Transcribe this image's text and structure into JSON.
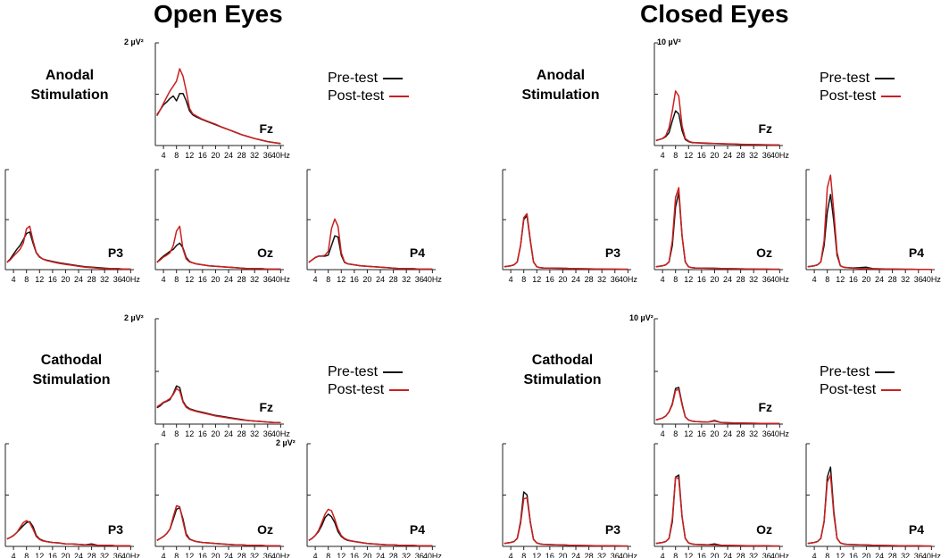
{
  "titles": {
    "left": "Open Eyes",
    "right": "Closed Eyes"
  },
  "conditions": {
    "anodal": [
      "Anodal",
      "Stimulation"
    ],
    "cathodal": [
      "Cathodal",
      "Stimulation"
    ]
  },
  "legend": {
    "pre": "Pre-test",
    "post": "Post-test"
  },
  "colors": {
    "pre": "#111111",
    "post": "#cc1f1f",
    "axis": "#222222"
  },
  "chart_data": {
    "type": "line",
    "xlabel": "Hz",
    "x_ticks": [
      4,
      8,
      12,
      16,
      20,
      24,
      28,
      32,
      36,
      40
    ],
    "x_tick_labels": [
      "4",
      "8",
      "12",
      "16",
      "20",
      "24",
      "28",
      "32",
      "36",
      "40Hz"
    ],
    "x": [
      2,
      3,
      4,
      5,
      6,
      7,
      8,
      9,
      10,
      11,
      12,
      13,
      14,
      16,
      18,
      20,
      22,
      24,
      26,
      28,
      30,
      32,
      34,
      36,
      38,
      40
    ],
    "series_names": [
      "Pre-test",
      "Post-test"
    ],
    "panels": [
      {
        "condition": "Anodal Stimulation",
        "state": "Open Eyes",
        "channel": "Fz",
        "ylabel": "2  µV²",
        "ylim": [
          0,
          2
        ],
        "pre": [
          0.62,
          0.72,
          0.82,
          0.88,
          0.95,
          1.0,
          0.9,
          1.05,
          1.05,
          0.9,
          0.7,
          0.62,
          0.58,
          0.52,
          0.47,
          0.42,
          0.37,
          0.32,
          0.27,
          0.22,
          0.18,
          0.14,
          0.11,
          0.08,
          0.06,
          0.04
        ],
        "post": [
          0.6,
          0.72,
          0.85,
          0.98,
          1.1,
          1.2,
          1.3,
          1.55,
          1.4,
          1.1,
          0.75,
          0.64,
          0.6,
          0.53,
          0.48,
          0.43,
          0.37,
          0.32,
          0.27,
          0.22,
          0.18,
          0.14,
          0.11,
          0.08,
          0.06,
          0.04
        ]
      },
      {
        "condition": "Anodal Stimulation",
        "state": "Open Eyes",
        "channel": "P3",
        "ylabel": "",
        "ylim": [
          0,
          2
        ],
        "pre": [
          0.15,
          0.22,
          0.32,
          0.42,
          0.5,
          0.62,
          0.75,
          0.78,
          0.55,
          0.35,
          0.26,
          0.22,
          0.2,
          0.17,
          0.14,
          0.12,
          0.1,
          0.08,
          0.06,
          0.05,
          0.04,
          0.03,
          0.02,
          0.02,
          0.01,
          0.01
        ],
        "post": [
          0.15,
          0.2,
          0.28,
          0.35,
          0.42,
          0.55,
          0.85,
          0.9,
          0.6,
          0.36,
          0.27,
          0.22,
          0.19,
          0.16,
          0.13,
          0.11,
          0.09,
          0.07,
          0.05,
          0.04,
          0.03,
          0.02,
          0.02,
          0.02,
          0.01,
          0.01
        ]
      },
      {
        "condition": "Anodal Stimulation",
        "state": "Open Eyes",
        "channel": "Oz",
        "ylabel": "",
        "ylim": [
          0,
          2
        ],
        "pre": [
          0.15,
          0.22,
          0.28,
          0.33,
          0.38,
          0.42,
          0.5,
          0.55,
          0.45,
          0.25,
          0.17,
          0.14,
          0.12,
          0.1,
          0.08,
          0.07,
          0.06,
          0.05,
          0.04,
          0.03,
          0.02,
          0.02,
          0.02,
          0.01,
          0.01,
          0.01
        ],
        "post": [
          0.15,
          0.2,
          0.26,
          0.3,
          0.35,
          0.5,
          0.8,
          0.9,
          0.42,
          0.22,
          0.16,
          0.14,
          0.12,
          0.1,
          0.08,
          0.07,
          0.06,
          0.05,
          0.04,
          0.03,
          0.02,
          0.02,
          0.02,
          0.01,
          0.01,
          0.01
        ]
      },
      {
        "condition": "Anodal Stimulation",
        "state": "Open Eyes",
        "channel": "P4",
        "ylabel": "",
        "ylim": [
          0,
          2
        ],
        "pre": [
          0.15,
          0.2,
          0.25,
          0.28,
          0.28,
          0.28,
          0.3,
          0.5,
          0.7,
          0.68,
          0.3,
          0.15,
          0.12,
          0.1,
          0.08,
          0.07,
          0.06,
          0.05,
          0.04,
          0.03,
          0.02,
          0.02,
          0.02,
          0.01,
          0.01,
          0.01
        ],
        "post": [
          0.15,
          0.2,
          0.25,
          0.28,
          0.28,
          0.3,
          0.38,
          0.85,
          1.05,
          0.9,
          0.35,
          0.16,
          0.12,
          0.1,
          0.08,
          0.07,
          0.06,
          0.05,
          0.04,
          0.03,
          0.02,
          0.02,
          0.02,
          0.01,
          0.01,
          0.01
        ]
      },
      {
        "condition": "Anodal Stimulation",
        "state": "Closed Eyes",
        "channel": "Fz",
        "ylabel": "10  µV²",
        "ylim": [
          0,
          10
        ],
        "pre": [
          0.5,
          0.6,
          0.7,
          0.9,
          1.3,
          2.5,
          3.5,
          3.2,
          1.5,
          0.6,
          0.4,
          0.3,
          0.28,
          0.25,
          0.22,
          0.2,
          0.18,
          0.16,
          0.14,
          0.12,
          0.1,
          0.09,
          0.08,
          0.07,
          0.06,
          0.05
        ],
        "post": [
          0.5,
          0.6,
          0.7,
          1.0,
          1.8,
          3.5,
          5.5,
          5.0,
          2.0,
          0.7,
          0.45,
          0.32,
          0.3,
          0.27,
          0.24,
          0.21,
          0.19,
          0.17,
          0.15,
          0.13,
          0.11,
          0.1,
          0.09,
          0.08,
          0.07,
          0.06
        ]
      },
      {
        "condition": "Anodal Stimulation",
        "state": "Closed Eyes",
        "channel": "P3",
        "ylabel": "",
        "ylim": [
          0,
          10
        ],
        "pre": [
          0.3,
          0.35,
          0.4,
          0.5,
          0.8,
          2.5,
          5.2,
          5.6,
          3.0,
          0.8,
          0.3,
          0.2,
          0.18,
          0.17,
          0.15,
          0.14,
          0.12,
          0.1,
          0.09,
          0.08,
          0.07,
          0.06,
          0.05,
          0.05,
          0.04,
          0.04
        ],
        "post": [
          0.3,
          0.35,
          0.4,
          0.5,
          0.8,
          2.5,
          5.4,
          5.8,
          3.1,
          0.8,
          0.3,
          0.2,
          0.18,
          0.17,
          0.15,
          0.14,
          0.12,
          0.1,
          0.09,
          0.08,
          0.07,
          0.06,
          0.05,
          0.05,
          0.04,
          0.04
        ]
      },
      {
        "condition": "Anodal Stimulation",
        "state": "Closed Eyes",
        "channel": "Oz",
        "ylabel": "",
        "ylim": [
          0,
          10
        ],
        "pre": [
          0.3,
          0.35,
          0.4,
          0.5,
          0.8,
          2.5,
          6.5,
          8.0,
          3.5,
          0.8,
          0.3,
          0.2,
          0.18,
          0.17,
          0.15,
          0.14,
          0.12,
          0.1,
          0.09,
          0.08,
          0.07,
          0.06,
          0.05,
          0.05,
          0.04,
          0.04
        ],
        "post": [
          0.3,
          0.35,
          0.4,
          0.5,
          0.8,
          3.0,
          7.5,
          8.5,
          3.5,
          0.8,
          0.3,
          0.2,
          0.18,
          0.17,
          0.15,
          0.14,
          0.12,
          0.1,
          0.09,
          0.08,
          0.07,
          0.06,
          0.05,
          0.05,
          0.04,
          0.04
        ]
      },
      {
        "condition": "Anodal Stimulation",
        "state": "Closed Eyes",
        "channel": "P4",
        "ylabel": "",
        "ylim": [
          0,
          10
        ],
        "pre": [
          0.3,
          0.35,
          0.4,
          0.5,
          0.8,
          2.5,
          6.0,
          7.8,
          5.0,
          1.5,
          0.4,
          0.25,
          0.2,
          0.18,
          0.2,
          0.25,
          0.1,
          0.08,
          0.07,
          0.06,
          0.05,
          0.04,
          0.04,
          0.03,
          0.03,
          0.03
        ],
        "post": [
          0.3,
          0.35,
          0.4,
          0.5,
          0.8,
          3.0,
          8.5,
          9.8,
          6.0,
          1.8,
          0.4,
          0.25,
          0.2,
          0.15,
          0.12,
          0.1,
          0.09,
          0.08,
          0.07,
          0.06,
          0.05,
          0.04,
          0.04,
          0.03,
          0.03,
          0.03
        ]
      },
      {
        "condition": "Cathodal Stimulation",
        "state": "Open Eyes",
        "channel": "Fz",
        "ylabel": "2  µV²",
        "ylim": [
          0,
          2
        ],
        "pre": [
          0.32,
          0.36,
          0.42,
          0.45,
          0.48,
          0.6,
          0.75,
          0.72,
          0.45,
          0.35,
          0.3,
          0.28,
          0.26,
          0.23,
          0.2,
          0.17,
          0.15,
          0.13,
          0.11,
          0.09,
          0.07,
          0.06,
          0.05,
          0.04,
          0.03,
          0.03
        ],
        "post": [
          0.34,
          0.38,
          0.43,
          0.46,
          0.5,
          0.58,
          0.7,
          0.65,
          0.43,
          0.33,
          0.29,
          0.27,
          0.25,
          0.22,
          0.19,
          0.16,
          0.14,
          0.12,
          0.1,
          0.08,
          0.07,
          0.06,
          0.05,
          0.04,
          0.03,
          0.03
        ]
      },
      {
        "condition": "Cathodal Stimulation",
        "state": "Open Eyes",
        "channel": "P3",
        "ylabel": "",
        "ylim": [
          0,
          2
        ],
        "pre": [
          0.15,
          0.18,
          0.22,
          0.28,
          0.35,
          0.42,
          0.48,
          0.5,
          0.4,
          0.22,
          0.15,
          0.12,
          0.1,
          0.08,
          0.07,
          0.05,
          0.05,
          0.04,
          0.03,
          0.05,
          0.02,
          0.02,
          0.02,
          0.01,
          0.01,
          0.01
        ],
        "post": [
          0.15,
          0.18,
          0.22,
          0.28,
          0.38,
          0.48,
          0.52,
          0.48,
          0.35,
          0.2,
          0.14,
          0.11,
          0.1,
          0.08,
          0.07,
          0.05,
          0.05,
          0.04,
          0.03,
          0.03,
          0.02,
          0.02,
          0.02,
          0.01,
          0.01,
          0.01
        ]
      },
      {
        "condition": "Cathodal Stimulation",
        "state": "Open Eyes",
        "channel": "Oz",
        "ylabel": "",
        "ylim": [
          0,
          2
        ],
        "pre": [
          0.12,
          0.16,
          0.2,
          0.26,
          0.35,
          0.55,
          0.75,
          0.78,
          0.55,
          0.25,
          0.15,
          0.12,
          0.1,
          0.08,
          0.07,
          0.06,
          0.05,
          0.04,
          0.03,
          0.03,
          0.02,
          0.02,
          0.02,
          0.01,
          0.01,
          0.01
        ],
        "post": [
          0.12,
          0.16,
          0.2,
          0.26,
          0.35,
          0.6,
          0.82,
          0.8,
          0.5,
          0.22,
          0.14,
          0.12,
          0.1,
          0.08,
          0.07,
          0.06,
          0.05,
          0.04,
          0.03,
          0.03,
          0.02,
          0.02,
          0.02,
          0.01,
          0.01,
          0.01
        ]
      },
      {
        "condition": "Cathodal Stimulation",
        "state": "Open Eyes",
        "channel": "P4",
        "ylabel": "2  µV²",
        "ylim": [
          0,
          2
        ],
        "pre": [
          0.12,
          0.16,
          0.22,
          0.3,
          0.42,
          0.58,
          0.65,
          0.6,
          0.48,
          0.3,
          0.2,
          0.15,
          0.12,
          0.1,
          0.08,
          0.06,
          0.05,
          0.04,
          0.03,
          0.03,
          0.02,
          0.02,
          0.02,
          0.01,
          0.01,
          0.01
        ],
        "post": [
          0.12,
          0.16,
          0.22,
          0.32,
          0.48,
          0.65,
          0.75,
          0.72,
          0.55,
          0.35,
          0.22,
          0.16,
          0.13,
          0.1,
          0.08,
          0.06,
          0.05,
          0.04,
          0.03,
          0.03,
          0.02,
          0.02,
          0.02,
          0.01,
          0.01,
          0.01
        ]
      },
      {
        "condition": "Cathodal Stimulation",
        "state": "Closed Eyes",
        "channel": "Fz",
        "ylabel": "10 µV²",
        "ylim": [
          0,
          10
        ],
        "pre": [
          0.4,
          0.5,
          0.6,
          0.8,
          1.2,
          2.0,
          3.5,
          3.6,
          2.0,
          0.7,
          0.4,
          0.3,
          0.25,
          0.22,
          0.2,
          0.35,
          0.15,
          0.13,
          0.11,
          0.1,
          0.09,
          0.08,
          0.07,
          0.06,
          0.05,
          0.05
        ],
        "post": [
          0.4,
          0.5,
          0.6,
          0.8,
          1.2,
          1.9,
          3.3,
          3.4,
          1.9,
          0.7,
          0.4,
          0.3,
          0.25,
          0.22,
          0.2,
          0.3,
          0.15,
          0.13,
          0.11,
          0.1,
          0.09,
          0.08,
          0.07,
          0.06,
          0.05,
          0.05
        ]
      },
      {
        "condition": "Cathodal Stimulation",
        "state": "Closed Eyes",
        "channel": "P3",
        "ylabel": "",
        "ylim": [
          0,
          10
        ],
        "pre": [
          0.3,
          0.35,
          0.4,
          0.5,
          0.8,
          2.5,
          5.5,
          5.2,
          2.5,
          0.7,
          0.35,
          0.25,
          0.2,
          0.18,
          0.15,
          0.14,
          0.12,
          0.1,
          0.09,
          0.08,
          0.07,
          0.06,
          0.05,
          0.05,
          0.04,
          0.04
        ],
        "post": [
          0.3,
          0.35,
          0.4,
          0.5,
          0.8,
          2.3,
          4.8,
          4.9,
          2.4,
          0.7,
          0.35,
          0.25,
          0.2,
          0.18,
          0.15,
          0.14,
          0.12,
          0.1,
          0.09,
          0.08,
          0.07,
          0.06,
          0.05,
          0.05,
          0.04,
          0.04
        ]
      },
      {
        "condition": "Cathodal Stimulation",
        "state": "Closed Eyes",
        "channel": "Oz",
        "ylabel": "",
        "ylim": [
          0,
          10
        ],
        "pre": [
          0.3,
          0.35,
          0.4,
          0.5,
          0.8,
          2.5,
          7.0,
          7.2,
          3.0,
          0.8,
          0.35,
          0.25,
          0.2,
          0.18,
          0.15,
          0.25,
          0.12,
          0.1,
          0.09,
          0.08,
          0.07,
          0.06,
          0.05,
          0.05,
          0.04,
          0.04
        ],
        "post": [
          0.3,
          0.35,
          0.4,
          0.5,
          0.8,
          2.8,
          7.0,
          6.8,
          3.0,
          0.8,
          0.35,
          0.25,
          0.2,
          0.18,
          0.15,
          0.14,
          0.12,
          0.1,
          0.09,
          0.08,
          0.07,
          0.06,
          0.05,
          0.05,
          0.04,
          0.04
        ]
      },
      {
        "condition": "Cathodal Stimulation",
        "state": "Closed Eyes",
        "channel": "P4",
        "ylabel": "",
        "ylim": [
          0,
          10
        ],
        "pre": [
          0.3,
          0.35,
          0.4,
          0.5,
          0.8,
          2.5,
          7.0,
          8.0,
          3.5,
          0.8,
          0.35,
          0.25,
          0.2,
          0.18,
          0.15,
          0.14,
          0.12,
          0.1,
          0.09,
          0.08,
          0.07,
          0.06,
          0.05,
          0.05,
          0.04,
          0.04
        ],
        "post": [
          0.3,
          0.35,
          0.4,
          0.5,
          0.8,
          2.5,
          6.5,
          7.2,
          3.2,
          0.8,
          0.35,
          0.25,
          0.2,
          0.18,
          0.15,
          0.14,
          0.12,
          0.1,
          0.09,
          0.08,
          0.07,
          0.06,
          0.05,
          0.05,
          0.04,
          0.04
        ]
      }
    ]
  }
}
